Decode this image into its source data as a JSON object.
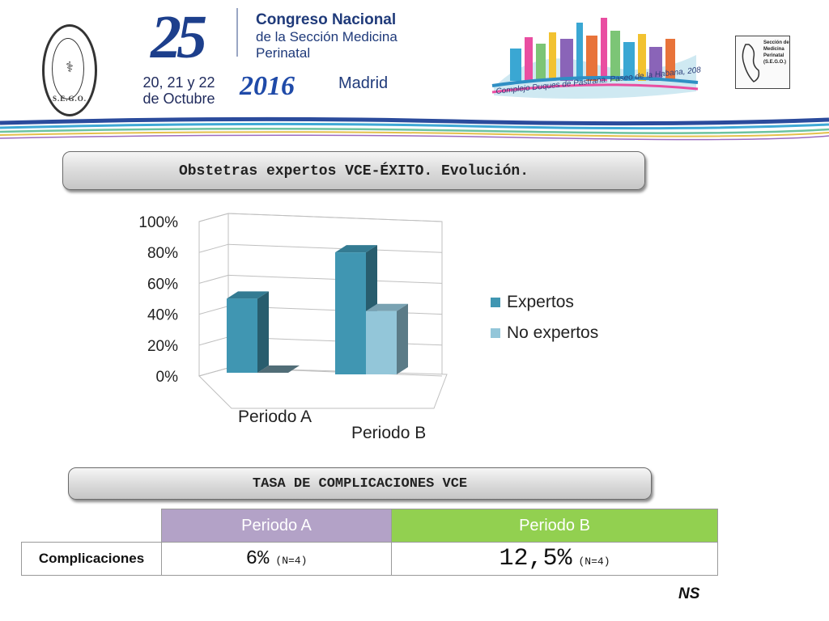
{
  "header": {
    "seal_label": "S.E.G.O.",
    "number": "25",
    "dates": "20, 21 y 22 de Octubre",
    "congress_title": "Congreso Nacional",
    "congress_sub": "de la Sección Medicina Perinatal",
    "year": "2016",
    "city": "Madrid",
    "venue": "Complejo Duques de Pastrana. Paseo de la Habana, 208",
    "section_logo_text": "Sección de Medicina Perinatal (S.E.G.O.)"
  },
  "chart_section": {
    "title": "Obstetras expertos VCE-ÉXITO. Evolución."
  },
  "chart_data": {
    "type": "bar",
    "categories": [
      "Periodo A",
      "Periodo B"
    ],
    "series": [
      {
        "name": "Expertos",
        "values": [
          48,
          79
        ],
        "color": "#4096b2"
      },
      {
        "name": "No expertos",
        "values": [
          0,
          41
        ],
        "color": "#93c6d9"
      }
    ],
    "ylim": [
      0,
      100
    ],
    "yticks": [
      "0%",
      "20%",
      "40%",
      "60%",
      "80%",
      "100%"
    ],
    "ytick_values": [
      0,
      20,
      40,
      60,
      80,
      100
    ],
    "legend": "right",
    "grid": true,
    "xlabel": "",
    "ylabel": ""
  },
  "complications": {
    "title": "TASA DE COMPLICACIONES VCE",
    "col_a": "Periodo A",
    "col_b": "Periodo B",
    "row_label": "Complicaciones",
    "value_a": "6%",
    "n_a": "(N=4)",
    "value_b": "12,5%",
    "n_b": "(N=4)",
    "significance": "NS",
    "colors": {
      "col_a": "#b3a2c7",
      "col_b": "#92d050"
    }
  }
}
